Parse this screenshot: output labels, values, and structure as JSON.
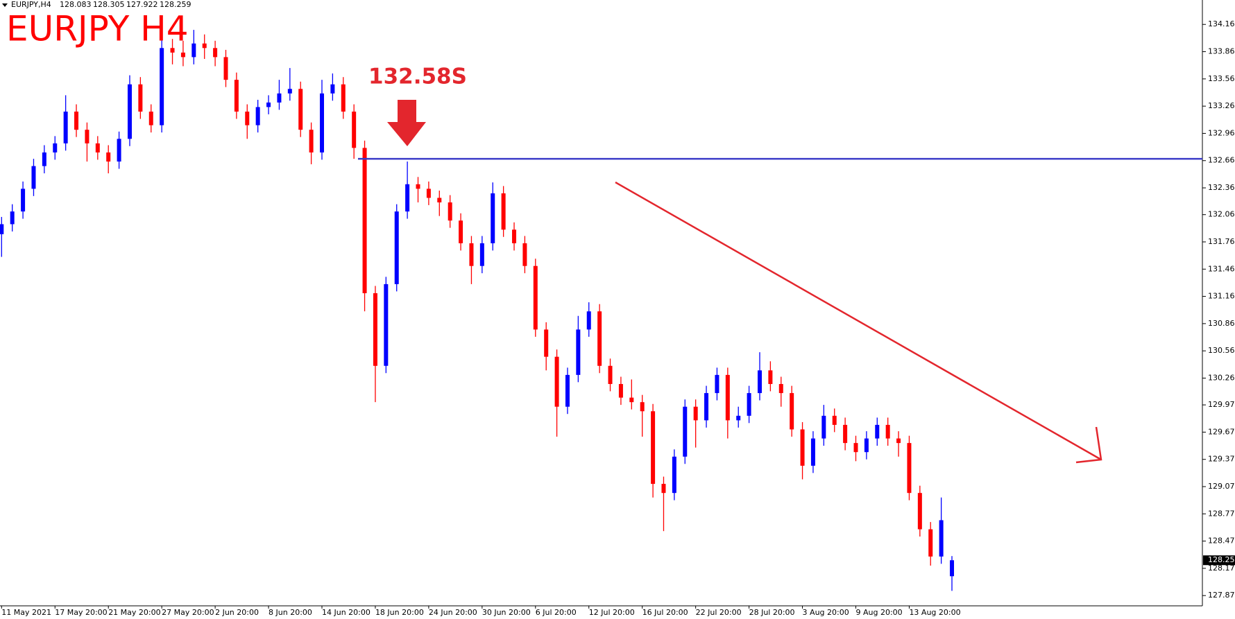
{
  "chart_data": {
    "type": "candlestick",
    "symbol": "EURJPY,H4",
    "title": "EURJPY H4",
    "annotation": "132.58S",
    "level": 132.68,
    "level_color": "#3b3bc8",
    "up_color": "#0000ff",
    "down_color": "#ff0000",
    "categories": [
      "11 May 2021",
      null,
      null,
      null,
      null,
      "17 May 20:00",
      null,
      null,
      null,
      null,
      "21 May 20:00",
      null,
      null,
      null,
      null,
      "27 May 20:00",
      null,
      null,
      null,
      null,
      "2 Jun 20:00",
      null,
      null,
      null,
      null,
      "8 Jun 20:00",
      null,
      null,
      null,
      null,
      "14 Jun 20:00",
      null,
      null,
      null,
      null,
      "18 Jun 20:00",
      null,
      null,
      null,
      null,
      "24 Jun 20:00",
      null,
      null,
      null,
      null,
      "30 Jun 20:00",
      null,
      null,
      null,
      null,
      "6 Jul 20:00",
      null,
      null,
      null,
      null,
      "12 Jul 20:00",
      null,
      null,
      null,
      null,
      "16 Jul 20:00",
      null,
      null,
      null,
      null,
      "22 Jul 20:00",
      null,
      null,
      null,
      null,
      "28 Jul 20:00",
      null,
      null,
      null,
      null,
      "3 Aug 20:00",
      null,
      null,
      null,
      null,
      "9 Aug 20:00",
      null,
      null,
      null,
      null,
      "13 Aug 20:00",
      null,
      null,
      null,
      null
    ],
    "open": [
      131.85,
      131.96,
      132.1,
      132.35,
      132.6,
      132.75,
      132.85,
      133.2,
      133.0,
      132.85,
      132.75,
      132.65,
      132.9,
      133.5,
      133.2,
      133.05,
      133.9,
      133.85,
      133.8,
      133.95,
      133.9,
      133.8,
      133.55,
      133.2,
      133.05,
      133.25,
      133.3,
      133.4,
      133.45,
      133.0,
      132.75,
      133.4,
      133.5,
      133.2,
      132.8,
      131.2,
      130.4,
      131.3,
      132.1,
      132.4,
      132.35,
      132.25,
      132.2,
      132.0,
      131.75,
      131.5,
      131.75,
      132.3,
      131.9,
      131.75,
      131.5,
      130.8,
      130.5,
      129.95,
      130.3,
      130.8,
      131.0,
      130.4,
      130.2,
      130.05,
      130.0,
      129.9,
      129.1,
      129.0,
      129.4,
      129.95,
      129.8,
      130.1,
      130.3,
      129.8,
      129.85,
      130.1,
      130.35,
      130.2,
      130.1,
      129.7,
      129.3,
      129.6,
      129.85,
      129.75,
      129.55,
      129.45,
      129.6,
      129.75,
      129.6,
      129.55,
      129.0,
      128.6,
      128.3,
      128.083
    ],
    "high": [
      132.04,
      132.18,
      132.43,
      132.68,
      132.83,
      132.93,
      133.38,
      133.28,
      133.08,
      132.93,
      132.83,
      132.98,
      133.6,
      133.58,
      133.28,
      134.02,
      134.0,
      133.98,
      134.1,
      134.05,
      133.98,
      133.88,
      133.63,
      133.28,
      133.33,
      133.38,
      133.55,
      133.68,
      133.53,
      133.08,
      133.55,
      133.62,
      133.58,
      133.28,
      132.88,
      131.28,
      131.38,
      132.18,
      132.65,
      132.48,
      132.43,
      132.33,
      132.28,
      132.08,
      131.83,
      131.83,
      132.42,
      132.38,
      131.98,
      131.83,
      131.58,
      130.88,
      130.58,
      130.38,
      130.95,
      131.1,
      131.08,
      130.48,
      130.28,
      130.25,
      130.08,
      129.98,
      129.18,
      129.48,
      130.03,
      130.03,
      130.18,
      130.38,
      130.38,
      129.95,
      130.18,
      130.55,
      130.45,
      130.28,
      130.18,
      129.78,
      129.68,
      129.97,
      129.93,
      129.83,
      129.63,
      129.68,
      129.83,
      129.83,
      129.68,
      129.63,
      129.08,
      128.68,
      128.95,
      128.305
    ],
    "low": [
      131.6,
      131.88,
      132.02,
      132.27,
      132.52,
      132.67,
      132.77,
      132.92,
      132.65,
      132.67,
      132.52,
      132.57,
      132.82,
      133.12,
      132.97,
      132.97,
      133.72,
      133.7,
      133.72,
      133.78,
      133.7,
      133.47,
      133.12,
      132.9,
      132.97,
      133.17,
      133.22,
      133.32,
      132.92,
      132.62,
      132.67,
      133.32,
      133.12,
      132.68,
      131.0,
      130.0,
      130.32,
      131.22,
      132.02,
      132.2,
      132.17,
      132.05,
      131.92,
      131.67,
      131.3,
      131.42,
      131.67,
      131.82,
      131.67,
      131.42,
      130.72,
      130.35,
      129.62,
      129.87,
      130.22,
      130.72,
      130.32,
      130.12,
      129.97,
      129.92,
      129.62,
      128.95,
      128.58,
      128.92,
      129.32,
      129.5,
      129.72,
      130.02,
      129.6,
      129.72,
      129.77,
      130.02,
      130.12,
      129.95,
      129.62,
      129.15,
      129.22,
      129.52,
      129.67,
      129.47,
      129.35,
      129.37,
      129.52,
      129.52,
      129.4,
      128.92,
      128.52,
      128.2,
      128.22,
      127.922
    ],
    "close": [
      131.96,
      132.1,
      132.35,
      132.6,
      132.75,
      132.85,
      133.2,
      133.0,
      132.85,
      132.75,
      132.65,
      132.9,
      133.5,
      133.2,
      133.05,
      133.9,
      133.85,
      133.8,
      133.95,
      133.9,
      133.8,
      133.55,
      133.2,
      133.05,
      133.25,
      133.3,
      133.4,
      133.45,
      133.0,
      132.75,
      133.4,
      133.5,
      133.2,
      132.8,
      131.2,
      130.4,
      131.3,
      132.1,
      132.4,
      132.35,
      132.25,
      132.2,
      132.0,
      131.75,
      131.5,
      131.75,
      132.3,
      131.9,
      131.75,
      131.5,
      130.8,
      130.5,
      129.95,
      130.3,
      130.8,
      131.0,
      130.4,
      130.2,
      130.05,
      130.0,
      129.9,
      129.1,
      129.0,
      129.4,
      129.95,
      129.8,
      130.1,
      130.3,
      129.8,
      129.85,
      130.1,
      130.35,
      130.2,
      130.1,
      129.7,
      129.3,
      129.6,
      129.85,
      129.75,
      129.55,
      129.45,
      129.6,
      129.75,
      129.6,
      129.55,
      129.0,
      128.6,
      128.3,
      128.7,
      128.259
    ],
    "ylim": [
      127.757,
      134.429
    ],
    "yticks": [
      {
        "value": 134.16,
        "label": "134.160"
      },
      {
        "value": 133.86,
        "label": "133.860"
      },
      {
        "value": 133.56,
        "label": "133.560"
      },
      {
        "value": 133.26,
        "label": "133.260"
      },
      {
        "value": 132.96,
        "label": "132.960"
      },
      {
        "value": 132.66,
        "label": "132.660"
      },
      {
        "value": 132.36,
        "label": "132.360"
      },
      132.065,
      131.765,
      131.465,
      131.165,
      130.865,
      130.565,
      130.265,
      {
        "value": 129.97,
        "label": "129.970"
      },
      {
        "value": 129.67,
        "label": "129.670"
      },
      {
        "value": 129.37,
        "label": "129.370"
      },
      {
        "value": 129.07,
        "label": "129.070"
      },
      {
        "value": 128.77,
        "label": "128.770"
      },
      {
        "value": 128.47,
        "label": "128.470"
      },
      {
        "value": 128.17,
        "label": "128.170"
      },
      {
        "value": 127.87,
        "label": "127.870"
      }
    ]
  }
}
